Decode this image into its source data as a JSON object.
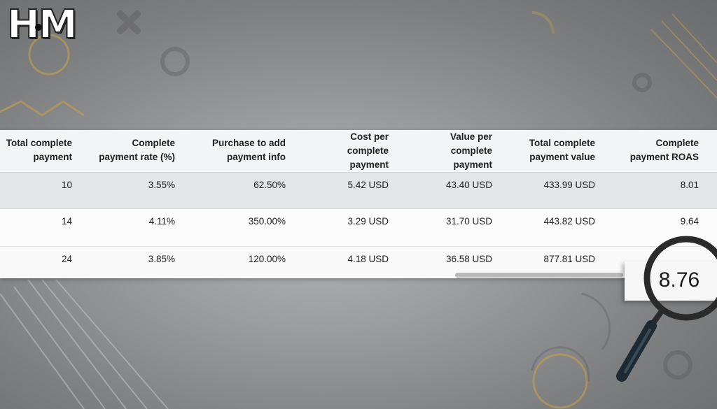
{
  "logo": {
    "text": "HM"
  },
  "table": {
    "headers": [
      [
        "Total complete",
        "payment"
      ],
      [
        "Complete",
        "payment rate (%)"
      ],
      [
        "Purchase to add",
        "payment info"
      ],
      [
        "Cost per",
        "complete",
        "payment"
      ],
      [
        "Value per",
        "complete",
        "payment"
      ],
      [
        "Total complete",
        "payment value"
      ],
      [
        "Complete",
        "payment ROAS"
      ]
    ],
    "rows": [
      [
        "10",
        "3.55%",
        "62.50%",
        "5.42 USD",
        "43.40 USD",
        "433.99 USD",
        "8.01"
      ],
      [
        "14",
        "4.11%",
        "350.00%",
        "3.29 USD",
        "31.70 USD",
        "443.82 USD",
        "9.64"
      ],
      [
        "24",
        "3.85%",
        "120.00%",
        "4.18 USD",
        "36.58 USD",
        "877.81 USD",
        ""
      ]
    ]
  },
  "magnified": {
    "value": "8.76"
  },
  "colors": {
    "accent": "#c9a24a",
    "lens_ring": "#2a2a2a",
    "header_bg": "#f3f4f5"
  }
}
